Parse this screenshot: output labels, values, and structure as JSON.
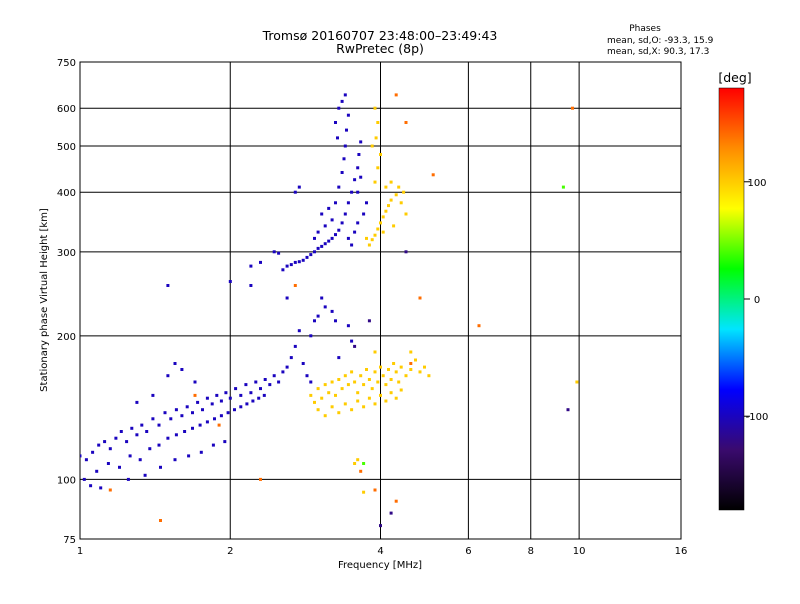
{
  "chart_data": {
    "type": "scatter",
    "title": "Tromsø 20160707 23:48:00–23:49:43",
    "subtitle": "RwPretec (8p)",
    "xlabel": "Frequency [MHz]",
    "ylabel": "Stationary phase Virtual Height [km]",
    "x_scale": "log",
    "y_scale": "log",
    "xlim": [
      1,
      16
    ],
    "ylim": [
      75,
      750
    ],
    "x_ticks": [
      1,
      2,
      4,
      6,
      8,
      10,
      16
    ],
    "x_tick_labels": [
      "1",
      "2",
      "4",
      "6",
      "8",
      "10",
      "16"
    ],
    "y_ticks": [
      75,
      100,
      200,
      300,
      400,
      500,
      600,
      750
    ],
    "y_tick_labels": [
      "75",
      "100",
      "200",
      "300",
      "400",
      "500",
      "600",
      "750"
    ],
    "grid": true,
    "phase_box": {
      "title": "Phases",
      "line_o": "mean, sd,O: -93.3, 15.9",
      "line_x": "mean, sd,X:  90.3, 17.3"
    },
    "colorbar": {
      "label": "[deg]",
      "range": [
        -180,
        180
      ],
      "ticks": [
        100,
        0,
        -100
      ],
      "tick_labels": [
        "100",
        "0",
        "-100"
      ],
      "colors": [
        "#000000",
        "#3a0a6e",
        "#0000ff",
        "#00e5ff",
        "#00ff00",
        "#ffff00",
        "#ff8c00",
        "#ff0000"
      ]
    },
    "series": [
      {
        "id": "f-layer-o",
        "phase": -100,
        "points": [
          [
            2.55,
            275
          ],
          [
            2.6,
            280
          ],
          [
            2.65,
            282
          ],
          [
            2.7,
            285
          ],
          [
            2.75,
            286
          ],
          [
            2.8,
            288
          ],
          [
            2.85,
            292
          ],
          [
            2.9,
            296
          ],
          [
            2.95,
            300
          ],
          [
            3.0,
            305
          ],
          [
            3.05,
            308
          ],
          [
            3.1,
            312
          ],
          [
            3.15,
            316
          ],
          [
            3.2,
            320
          ],
          [
            3.25,
            326
          ],
          [
            3.3,
            333
          ],
          [
            3.35,
            345
          ],
          [
            3.4,
            360
          ],
          [
            3.45,
            380
          ],
          [
            3.5,
            400
          ],
          [
            3.55,
            425
          ],
          [
            3.6,
            450
          ],
          [
            3.62,
            480
          ],
          [
            3.65,
            510
          ],
          [
            3.2,
            350
          ],
          [
            3.25,
            380
          ],
          [
            3.3,
            410
          ],
          [
            3.35,
            440
          ],
          [
            3.38,
            470
          ],
          [
            3.4,
            500
          ],
          [
            3.42,
            540
          ],
          [
            3.45,
            580
          ],
          [
            3.3,
            600
          ],
          [
            3.35,
            620
          ],
          [
            3.4,
            640
          ],
          [
            3.25,
            560
          ],
          [
            3.28,
            520
          ],
          [
            3.1,
            340
          ],
          [
            3.15,
            370
          ],
          [
            3.0,
            330
          ],
          [
            2.95,
            320
          ],
          [
            3.05,
            360
          ],
          [
            3.45,
            320
          ],
          [
            3.5,
            310
          ],
          [
            3.55,
            330
          ],
          [
            3.6,
            345
          ],
          [
            3.7,
            360
          ],
          [
            3.75,
            380
          ],
          [
            3.6,
            400
          ],
          [
            3.65,
            430
          ],
          [
            2.45,
            300
          ],
          [
            2.5,
            298
          ],
          [
            2.3,
            285
          ],
          [
            2.2,
            280
          ],
          [
            2.7,
            400
          ],
          [
            2.75,
            410
          ]
        ]
      },
      {
        "id": "f-layer-x",
        "phase": 100,
        "points": [
          [
            3.8,
            310
          ],
          [
            3.85,
            318
          ],
          [
            3.9,
            325
          ],
          [
            3.95,
            335
          ],
          [
            4.0,
            345
          ],
          [
            4.05,
            355
          ],
          [
            4.1,
            365
          ],
          [
            4.15,
            375
          ],
          [
            4.2,
            385
          ],
          [
            4.3,
            395
          ],
          [
            4.4,
            380
          ],
          [
            4.5,
            360
          ],
          [
            3.9,
            420
          ],
          [
            3.95,
            450
          ],
          [
            4.0,
            480
          ],
          [
            3.92,
            520
          ],
          [
            3.95,
            560
          ],
          [
            3.9,
            600
          ],
          [
            3.85,
            500
          ],
          [
            4.1,
            410
          ],
          [
            4.2,
            420
          ],
          [
            4.35,
            410
          ],
          [
            4.25,
            340
          ],
          [
            4.45,
            400
          ],
          [
            3.75,
            320
          ],
          [
            4.05,
            330
          ]
        ]
      },
      {
        "id": "e-layer-o",
        "phase": -100,
        "points": [
          [
            1.0,
            112
          ],
          [
            1.03,
            110
          ],
          [
            1.06,
            114
          ],
          [
            1.09,
            118
          ],
          [
            1.12,
            120
          ],
          [
            1.15,
            116
          ],
          [
            1.18,
            122
          ],
          [
            1.21,
            126
          ],
          [
            1.24,
            120
          ],
          [
            1.27,
            128
          ],
          [
            1.3,
            124
          ],
          [
            1.33,
            130
          ],
          [
            1.36,
            126
          ],
          [
            1.4,
            134
          ],
          [
            1.44,
            130
          ],
          [
            1.48,
            138
          ],
          [
            1.52,
            134
          ],
          [
            1.56,
            140
          ],
          [
            1.6,
            136
          ],
          [
            1.64,
            142
          ],
          [
            1.68,
            138
          ],
          [
            1.72,
            145
          ],
          [
            1.76,
            140
          ],
          [
            1.8,
            148
          ],
          [
            1.84,
            144
          ],
          [
            1.88,
            150
          ],
          [
            1.92,
            146
          ],
          [
            1.96,
            152
          ],
          [
            2.0,
            148
          ],
          [
            2.05,
            155
          ],
          [
            2.1,
            150
          ],
          [
            2.15,
            158
          ],
          [
            2.2,
            152
          ],
          [
            2.25,
            160
          ],
          [
            2.3,
            155
          ],
          [
            2.35,
            162
          ],
          [
            2.4,
            158
          ],
          [
            2.45,
            165
          ],
          [
            2.5,
            160
          ],
          [
            2.55,
            168
          ],
          [
            2.6,
            172
          ],
          [
            2.65,
            180
          ],
          [
            2.7,
            190
          ],
          [
            2.75,
            205
          ],
          [
            2.8,
            175
          ],
          [
            2.85,
            165
          ],
          [
            2.9,
            160
          ],
          [
            1.02,
            100
          ],
          [
            1.08,
            104
          ],
          [
            1.14,
            108
          ],
          [
            1.2,
            106
          ],
          [
            1.26,
            112
          ],
          [
            1.32,
            110
          ],
          [
            1.38,
            116
          ],
          [
            1.44,
            118
          ],
          [
            1.5,
            122
          ],
          [
            1.56,
            124
          ],
          [
            1.62,
            126
          ],
          [
            1.68,
            128
          ],
          [
            1.74,
            130
          ],
          [
            1.8,
            132
          ],
          [
            1.86,
            134
          ],
          [
            1.92,
            136
          ],
          [
            1.98,
            138
          ],
          [
            2.04,
            140
          ],
          [
            2.1,
            142
          ],
          [
            2.16,
            144
          ],
          [
            2.22,
            146
          ],
          [
            2.28,
            148
          ],
          [
            2.34,
            150
          ],
          [
            1.05,
            97
          ],
          [
            1.1,
            96
          ],
          [
            1.25,
            100
          ],
          [
            1.35,
            102
          ],
          [
            1.45,
            106
          ],
          [
            1.55,
            110
          ],
          [
            1.65,
            112
          ],
          [
            1.75,
            114
          ],
          [
            1.85,
            118
          ],
          [
            1.95,
            120
          ],
          [
            1.5,
            165
          ],
          [
            1.55,
            175
          ],
          [
            1.6,
            170
          ],
          [
            1.7,
            160
          ],
          [
            1.4,
            150
          ],
          [
            1.3,
            145
          ],
          [
            2.95,
            215
          ],
          [
            3.0,
            220
          ],
          [
            3.1,
            230
          ],
          [
            3.2,
            225
          ],
          [
            1.5,
            255
          ],
          [
            2.0,
            260
          ],
          [
            2.2,
            255
          ],
          [
            2.6,
            240
          ],
          [
            3.25,
            215
          ],
          [
            3.5,
            195
          ],
          [
            3.3,
            180
          ],
          [
            3.45,
            210
          ],
          [
            2.9,
            200
          ],
          [
            3.05,
            240
          ]
        ]
      },
      {
        "id": "e-layer-x",
        "phase": 100,
        "points": [
          [
            2.9,
            150
          ],
          [
            2.95,
            145
          ],
          [
            3.0,
            155
          ],
          [
            3.05,
            148
          ],
          [
            3.1,
            158
          ],
          [
            3.15,
            152
          ],
          [
            3.2,
            160
          ],
          [
            3.25,
            150
          ],
          [
            3.3,
            162
          ],
          [
            3.35,
            155
          ],
          [
            3.4,
            165
          ],
          [
            3.45,
            158
          ],
          [
            3.5,
            168
          ],
          [
            3.55,
            160
          ],
          [
            3.6,
            152
          ],
          [
            3.65,
            165
          ],
          [
            3.7,
            158
          ],
          [
            3.75,
            170
          ],
          [
            3.8,
            162
          ],
          [
            3.85,
            155
          ],
          [
            3.9,
            168
          ],
          [
            3.95,
            160
          ],
          [
            4.0,
            172
          ],
          [
            4.05,
            165
          ],
          [
            4.1,
            158
          ],
          [
            4.15,
            170
          ],
          [
            4.2,
            162
          ],
          [
            4.25,
            175
          ],
          [
            4.3,
            168
          ],
          [
            4.35,
            160
          ],
          [
            4.4,
            172
          ],
          [
            4.5,
            165
          ],
          [
            4.6,
            170
          ],
          [
            4.7,
            178
          ],
          [
            4.8,
            168
          ],
          [
            4.9,
            172
          ],
          [
            5.0,
            165
          ],
          [
            3.0,
            140
          ],
          [
            3.1,
            136
          ],
          [
            3.2,
            142
          ],
          [
            3.3,
            138
          ],
          [
            3.4,
            144
          ],
          [
            3.5,
            140
          ],
          [
            3.6,
            146
          ],
          [
            3.7,
            142
          ],
          [
            3.8,
            148
          ],
          [
            3.9,
            144
          ],
          [
            4.0,
            150
          ],
          [
            4.1,
            146
          ],
          [
            4.2,
            152
          ],
          [
            4.3,
            148
          ],
          [
            4.4,
            154
          ],
          [
            3.6,
            110
          ],
          [
            3.55,
            108
          ],
          [
            9.9,
            160
          ],
          [
            4.6,
            185
          ],
          [
            3.9,
            185
          ],
          [
            3.7,
            94
          ]
        ]
      },
      {
        "id": "scattered",
        "phase": 140,
        "points": [
          [
            4.3,
            640
          ],
          [
            4.5,
            560
          ],
          [
            5.1,
            435
          ],
          [
            6.3,
            210
          ],
          [
            9.7,
            600
          ],
          [
            4.8,
            240
          ],
          [
            3.9,
            95
          ],
          [
            4.3,
            90
          ],
          [
            4.6,
            175
          ],
          [
            2.7,
            255
          ],
          [
            1.7,
            150
          ],
          [
            1.9,
            130
          ],
          [
            1.45,
            82
          ],
          [
            3.65,
            104
          ],
          [
            1.15,
            95
          ],
          [
            2.3,
            100
          ]
        ]
      },
      {
        "id": "scattered-low",
        "phase": -120,
        "points": [
          [
            9.5,
            140
          ],
          [
            4.2,
            85
          ],
          [
            4.0,
            80
          ],
          [
            4.5,
            300
          ],
          [
            3.8,
            215
          ],
          [
            3.55,
            190
          ]
        ]
      },
      {
        "id": "scattered-green",
        "phase": 40,
        "points": [
          [
            9.3,
            410
          ],
          [
            3.7,
            108
          ]
        ]
      }
    ]
  }
}
